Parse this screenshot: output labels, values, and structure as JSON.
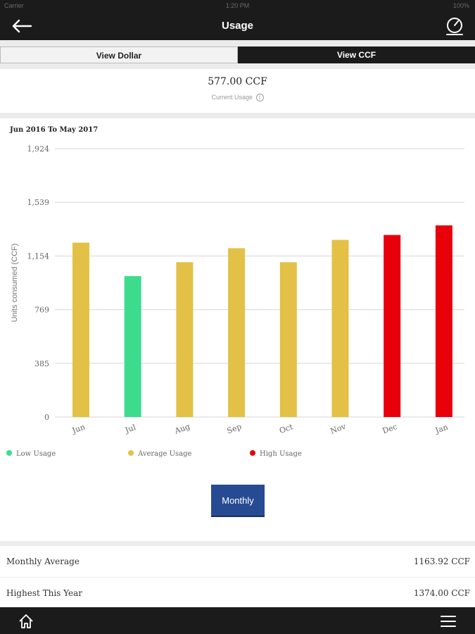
{
  "status_bar": {
    "carrier": "Carrier",
    "time": "1:20 PM",
    "battery": "100%"
  },
  "nav": {
    "title": "Usage",
    "back_icon": "arrow-left-icon",
    "right_icon": "gauge-icon"
  },
  "toggle": {
    "dollar_label": "View Dollar",
    "ccf_label": "View CCF",
    "selected": "View CCF"
  },
  "current_usage": {
    "value": "577.00 CCF",
    "label": "Current Usage"
  },
  "date_range": "Jun 2016 To May 2017",
  "chart_data": {
    "type": "bar",
    "categories": [
      "Jun",
      "Jul",
      "Aug",
      "Sep",
      "Oct",
      "Nov",
      "Dec",
      "Jan"
    ],
    "values": [
      1250,
      1010,
      1110,
      1210,
      1110,
      1270,
      1305,
      1374
    ],
    "levels": [
      "average",
      "low",
      "average",
      "average",
      "average",
      "average",
      "high",
      "high"
    ],
    "ylabel": "Units consumed (CCF)",
    "yticks": [
      "1,924",
      "1,539",
      "1,154",
      "769",
      "385",
      "0"
    ],
    "ylim": [
      0,
      1924
    ],
    "grid": true,
    "legend": [
      {
        "key": "low",
        "label": "Low Usage",
        "color": "#3ddc8d"
      },
      {
        "key": "average",
        "label": "Average Usage",
        "color": "#e3c146"
      },
      {
        "key": "high",
        "label": "High Usage",
        "color": "#e8000b"
      }
    ]
  },
  "period_button": "Monthly",
  "stats": {
    "monthly_average_label": "Monthly Average",
    "monthly_average_value": "1163.92 CCF",
    "highest_label": "Highest This Year",
    "highest_value": "1374.00 CCF"
  },
  "tab_bar": {
    "left_icon": "home-icon",
    "right_icon": "menu-icon"
  }
}
